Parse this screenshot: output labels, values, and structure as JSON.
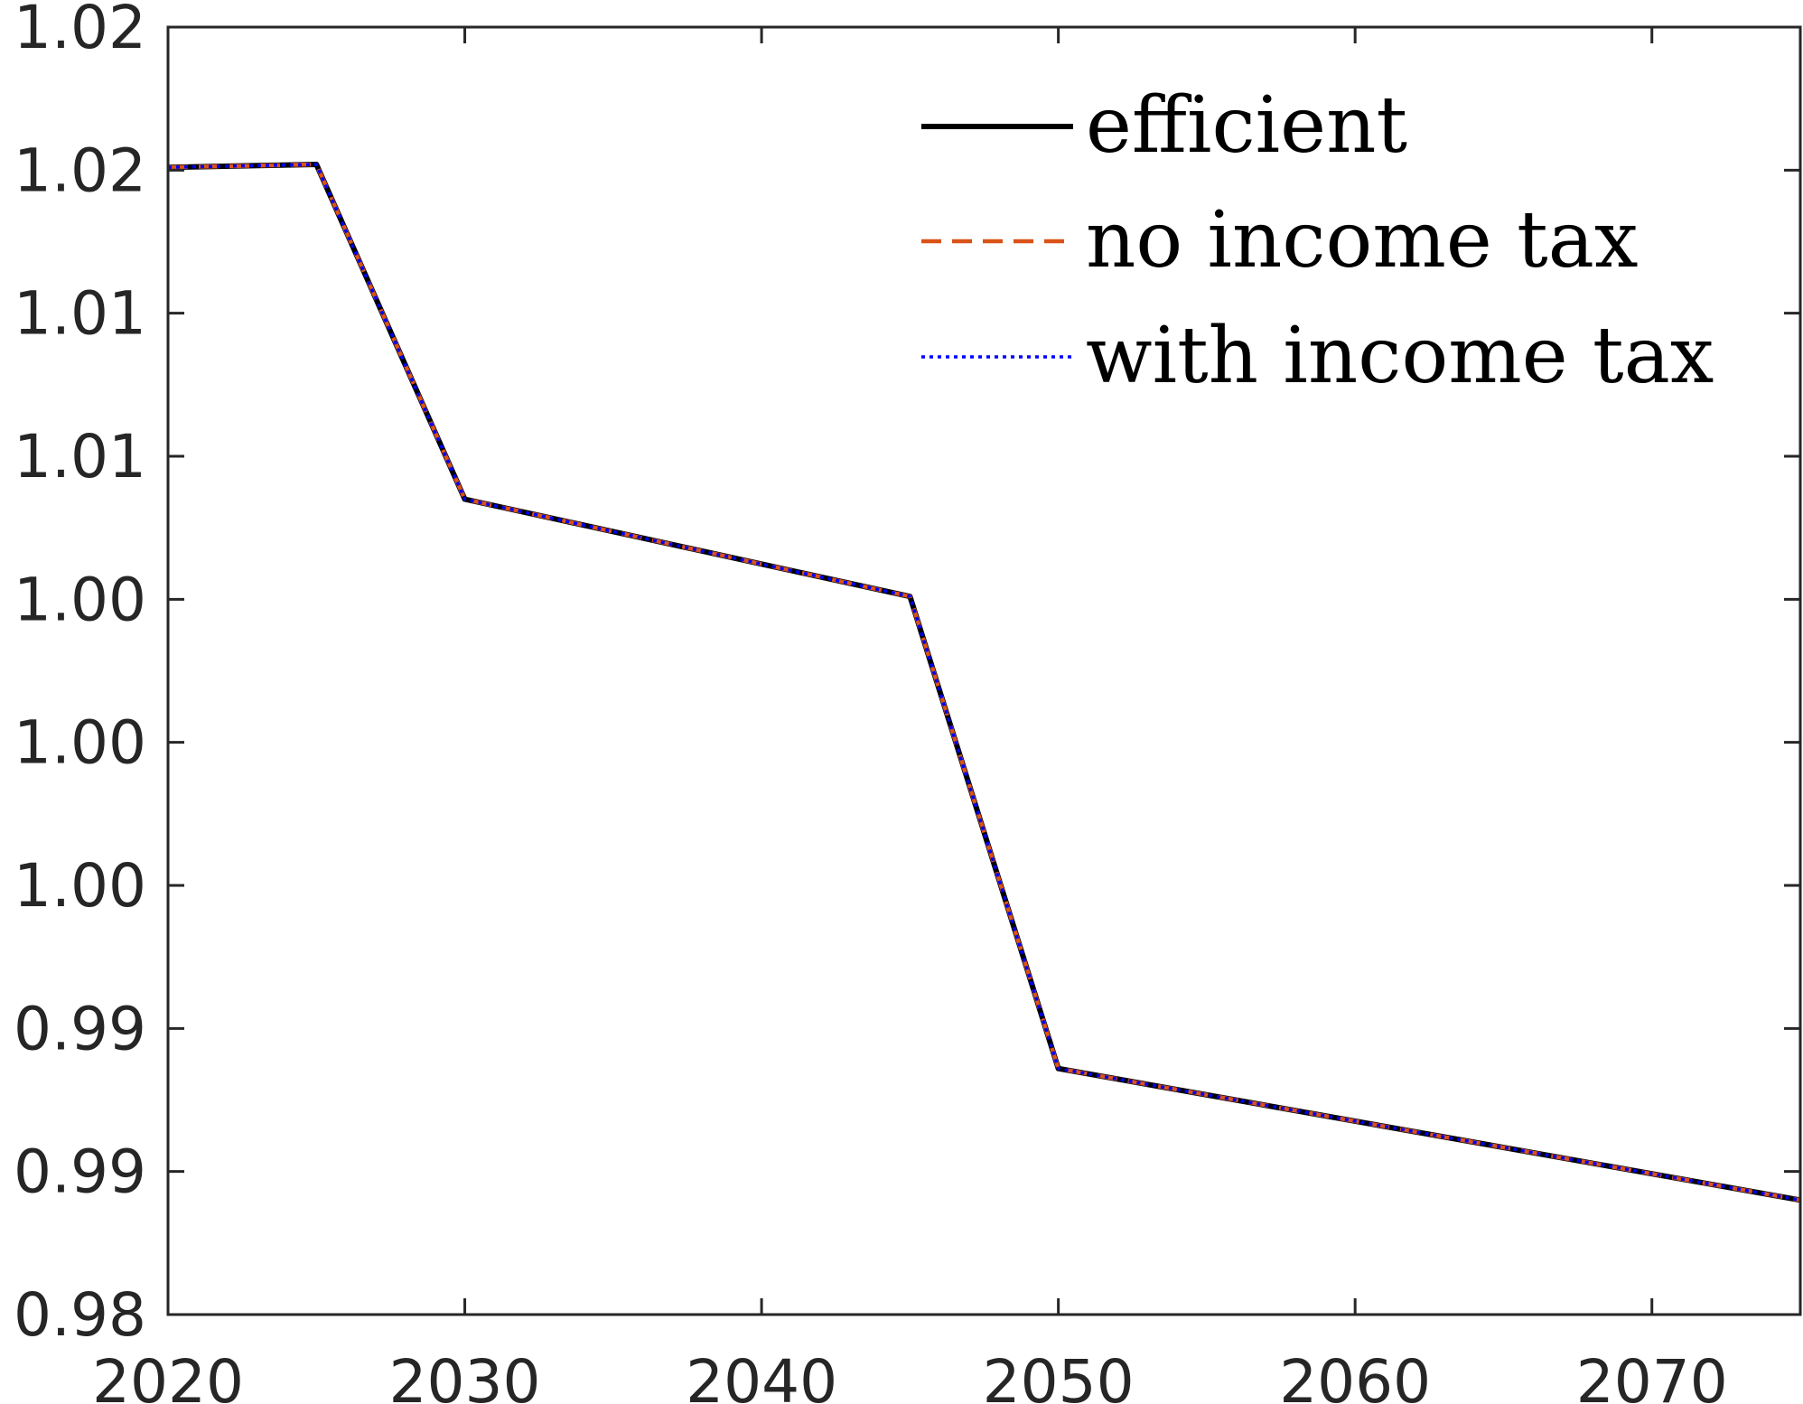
{
  "chart_data": {
    "type": "line",
    "title": "",
    "xlabel": "",
    "ylabel": "",
    "xlim": [
      2020,
      2075
    ],
    "ylim": [
      0.98,
      1.025
    ],
    "grid": false,
    "legend_position": "top-right",
    "x_ticks": [
      2020,
      2030,
      2040,
      2050,
      2060,
      2070
    ],
    "x_tick_labels": [
      "2020",
      "2030",
      "2040",
      "2050",
      "2060",
      "2070"
    ],
    "y_ticks": [
      0.98,
      0.985,
      0.99,
      0.995,
      1.0,
      1.005,
      1.01,
      1.015,
      1.02,
      1.025
    ],
    "y_tick_labels": [
      "0.98",
      "0.99",
      "0.99",
      "1.00",
      "1.00",
      "1.00",
      "1.01",
      "1.01",
      "1.02",
      "1.02"
    ],
    "series": [
      {
        "name": "efficient",
        "color": "#000000",
        "style": "solid",
        "x": [
          2020,
          2025,
          2030,
          2045,
          2050,
          2075
        ],
        "y": [
          1.0201,
          1.0202,
          1.0085,
          1.0051,
          0.9886,
          0.984
        ]
      },
      {
        "name": "no income tax",
        "color": "#D95319",
        "style": "dashed",
        "x": [
          2020,
          2025,
          2030,
          2045,
          2050,
          2075
        ],
        "y": [
          1.0201,
          1.0202,
          1.0085,
          1.0051,
          0.9886,
          0.984
        ]
      },
      {
        "name": "with income tax",
        "color": "#0000FF",
        "style": "dotted",
        "x": [
          2020,
          2025,
          2030,
          2045,
          2050,
          2075
        ],
        "y": [
          1.0201,
          1.0202,
          1.0085,
          1.0051,
          0.9886,
          0.984
        ]
      }
    ]
  }
}
